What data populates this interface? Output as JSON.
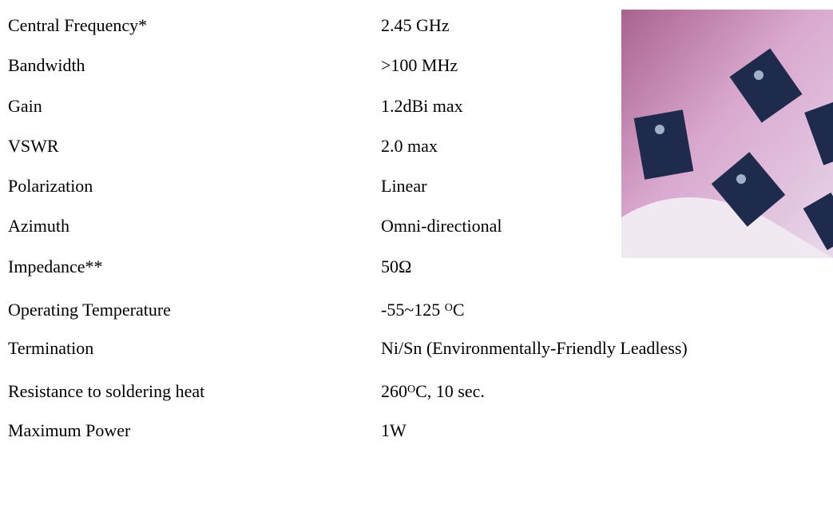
{
  "specs": {
    "rows": [
      {
        "label": "Central Frequency*",
        "value": [
          {
            "text": "2.45 GHz"
          }
        ]
      },
      {
        "label": "Bandwidth",
        "value": [
          {
            "text": ">100 MHz"
          }
        ]
      },
      {
        "label": "Gain",
        "value": [
          {
            "text": "1.2dBi max"
          }
        ]
      },
      {
        "label": "VSWR",
        "value": [
          {
            "text": "2.0 max"
          }
        ]
      },
      {
        "label": "Polarization",
        "value": [
          {
            "text": "Linear"
          }
        ]
      },
      {
        "label": "Azimuth",
        "value": [
          {
            "text": "Omni-directional"
          }
        ]
      },
      {
        "label": "Impedance**",
        "value": [
          {
            "text": "50Ω"
          }
        ]
      },
      {
        "label": "Operating Temperature",
        "value": [
          {
            "text": "-55~125 "
          },
          {
            "sup": "O"
          },
          {
            "text": "C"
          }
        ]
      },
      {
        "label": "Termination",
        "value": [
          {
            "text": "Ni/Sn (Environmentally-Friendly Leadless)"
          }
        ]
      },
      {
        "label": "Resistance to soldering heat",
        "value": [
          {
            "text": "260"
          },
          {
            "sup": "O"
          },
          {
            "text": "C, 10 sec."
          }
        ]
      },
      {
        "label": "Maximum Power",
        "value": [
          {
            "text": "1W"
          }
        ]
      }
    ]
  }
}
